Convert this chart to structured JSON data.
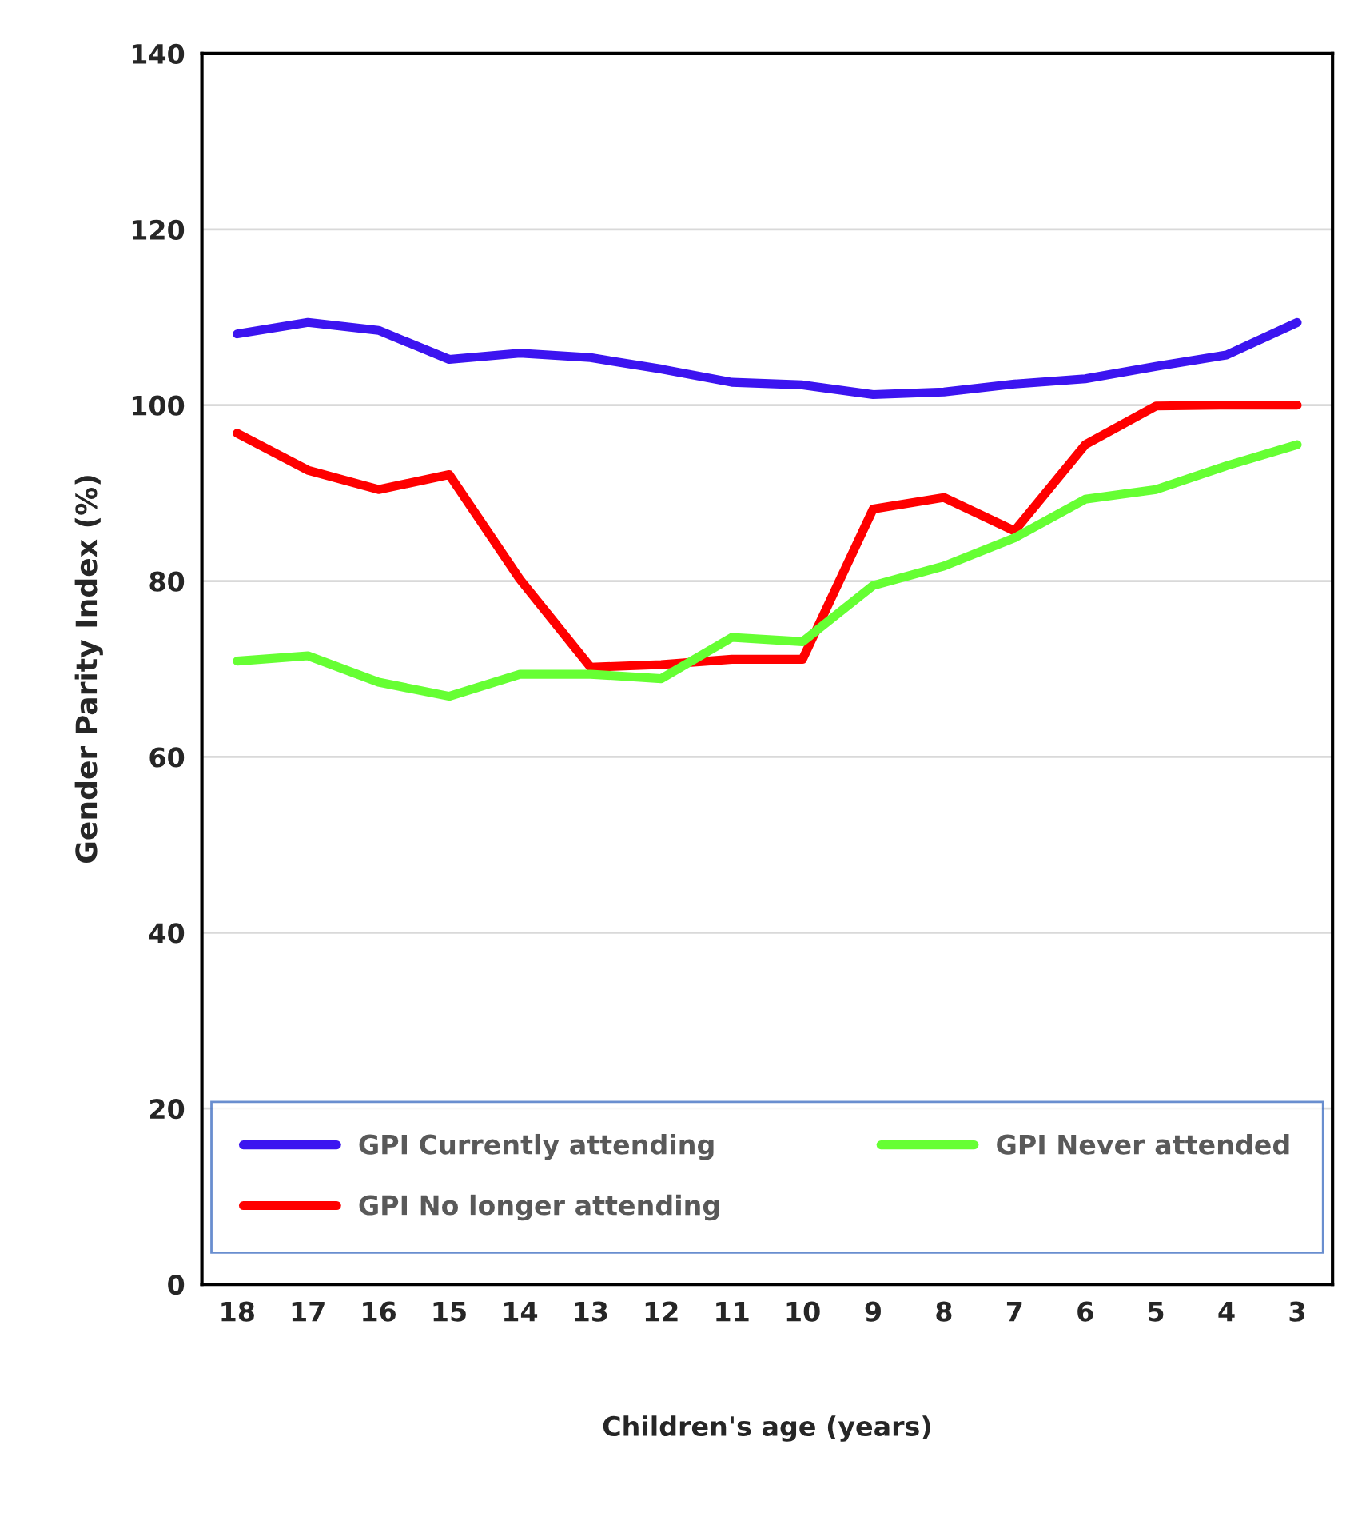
{
  "chart_data": {
    "type": "line",
    "xlabel": "Children's age (years)",
    "ylabel": "Gender Parity Index (%)",
    "categories": [
      "18",
      "17",
      "16",
      "15",
      "14",
      "13",
      "12",
      "11",
      "10",
      "9",
      "8",
      "7",
      "6",
      "5",
      "4",
      "3"
    ],
    "series": [
      {
        "name": "GPI Currently attending",
        "color": "#3c14f0",
        "values": [
          108.1,
          109.4,
          108.5,
          105.2,
          105.9,
          105.4,
          104.1,
          102.6,
          102.3,
          101.2,
          101.5,
          102.4,
          103.0,
          104.4,
          105.7,
          109.4
        ]
      },
      {
        "name": "GPI No longer attending",
        "color": "#ff0000",
        "values": [
          96.8,
          92.6,
          90.4,
          92.1,
          80.2,
          70.2,
          70.5,
          71.1,
          71.1,
          88.2,
          89.5,
          85.7,
          95.5,
          99.9,
          100,
          100
        ]
      },
      {
        "name": "GPI Never attended",
        "color": "#66ff33",
        "values": [
          70.9,
          71.5,
          68.5,
          66.9,
          69.4,
          69.4,
          68.9,
          73.6,
          73.1,
          79.5,
          81.7,
          84.9,
          89.3,
          90.4,
          93.1,
          95.5
        ]
      }
    ],
    "ylim": [
      0,
      140
    ],
    "yticks": [
      0,
      20,
      40,
      60,
      80,
      100,
      120,
      140
    ],
    "grid": "y",
    "legend": "bottom",
    "marker": "none",
    "line_style": "solid"
  }
}
